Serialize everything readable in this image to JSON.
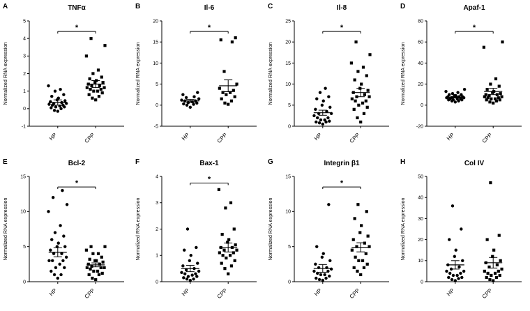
{
  "figure": {
    "background": "#ffffff",
    "marker_color": "#000000",
    "axis_color": "#000000",
    "group_labels": [
      "HP",
      "CPP"
    ],
    "significance_symbol": "*",
    "ylabel": "Normalized RNA expression"
  },
  "chart_data": [
    {
      "type": "scatter",
      "panel": "A",
      "title": "TNFα",
      "ylabel": "Normalized RNA expression",
      "ylim": [
        -1,
        5
      ],
      "yticks": [
        -1,
        0,
        1,
        2,
        3,
        4,
        5
      ],
      "significance": "*",
      "sig_y": 4.4,
      "groups": [
        {
          "label": "HP",
          "marker": "circle",
          "mean": 0.35,
          "sem": 0.15,
          "values": [
            -0.15,
            -0.1,
            0,
            0.05,
            0.1,
            0.1,
            0.15,
            0.2,
            0.2,
            0.25,
            0.3,
            0.3,
            0.35,
            0.4,
            0.45,
            0.5,
            0.6,
            0.7,
            0.8,
            1.0,
            1.1,
            1.3
          ]
        },
        {
          "label": "CPP",
          "marker": "square",
          "mean": 1.4,
          "sem": 0.2,
          "values": [
            0.5,
            0.6,
            0.7,
            0.8,
            0.9,
            1.0,
            1.0,
            1.1,
            1.1,
            1.2,
            1.2,
            1.3,
            1.3,
            1.4,
            1.5,
            1.5,
            1.6,
            1.7,
            1.8,
            2.0,
            2.2,
            3.0,
            3.6,
            4.0
          ]
        }
      ]
    },
    {
      "type": "scatter",
      "panel": "B",
      "title": "Il-6",
      "ylabel": "Normalized RNA expression",
      "ylim": [
        -5,
        20
      ],
      "yticks": [
        -5,
        0,
        5,
        10,
        15,
        20
      ],
      "significance": "*",
      "sig_y": 17.5,
      "groups": [
        {
          "label": "HP",
          "marker": "circle",
          "mean": 1.0,
          "sem": 0.35,
          "values": [
            -0.5,
            0,
            0.2,
            0.3,
            0.5,
            0.6,
            0.8,
            1.0,
            1.0,
            1.2,
            1.5,
            1.8,
            2.0,
            2.5,
            3.0
          ]
        },
        {
          "label": "CPP",
          "marker": "square",
          "mean": 4.6,
          "sem": 1.4,
          "values": [
            0.2,
            0.5,
            1.0,
            1.5,
            2.0,
            2.5,
            3.0,
            3.0,
            3.5,
            4.0,
            5.0,
            8.0,
            15.0,
            15.5,
            16.0
          ]
        }
      ]
    },
    {
      "type": "scatter",
      "panel": "C",
      "title": "Il-8",
      "ylabel": "Normalized RNA expression",
      "ylim": [
        0,
        25
      ],
      "yticks": [
        0,
        5,
        10,
        15,
        20,
        25
      ],
      "significance": "*",
      "sig_y": 22.5,
      "groups": [
        {
          "label": "HP",
          "marker": "circle",
          "mean": 3.2,
          "sem": 0.6,
          "values": [
            0.5,
            0.8,
            1,
            1,
            1.2,
            1.5,
            1.5,
            2,
            2,
            2.5,
            3,
            3,
            3.5,
            4,
            4.5,
            5,
            6,
            6.5,
            7,
            8,
            9
          ]
        },
        {
          "label": "CPP",
          "marker": "square",
          "mean": 8.0,
          "sem": 1.0,
          "values": [
            1,
            2,
            3,
            4,
            4.5,
            5,
            5.5,
            6,
            6,
            6.5,
            7,
            7,
            7.5,
            8,
            8.5,
            9,
            10,
            11,
            12,
            13,
            14,
            15,
            17,
            20
          ]
        }
      ]
    },
    {
      "type": "scatter",
      "panel": "D",
      "title": "Apaf-1",
      "ylabel": "Normalized RNA expression",
      "ylim": [
        -20,
        80
      ],
      "yticks": [
        -20,
        0,
        20,
        40,
        60,
        80
      ],
      "significance": "*",
      "sig_y": 70,
      "groups": [
        {
          "label": "HP",
          "marker": "circle",
          "mean": 7.5,
          "sem": 0.7,
          "values": [
            3,
            4,
            4,
            5,
            5,
            5,
            6,
            6,
            6,
            7,
            7,
            7,
            8,
            8,
            8,
            9,
            9,
            10,
            10,
            11,
            12,
            13,
            15
          ]
        },
        {
          "label": "CPP",
          "marker": "square",
          "mean": 13.0,
          "sem": 3.0,
          "values": [
            2,
            3,
            4,
            5,
            5,
            6,
            6,
            7,
            7,
            8,
            8,
            9,
            10,
            10,
            11,
            12,
            13,
            15,
            18,
            20,
            25,
            55,
            60
          ]
        }
      ]
    },
    {
      "type": "scatter",
      "panel": "E",
      "title": "Bcl-2",
      "ylabel": "Normalized RNA expression",
      "ylim": [
        0,
        15
      ],
      "yticks": [
        0,
        5,
        10,
        15
      ],
      "significance": "*",
      "sig_y": 13.5,
      "groups": [
        {
          "label": "HP",
          "marker": "circle",
          "mean": 4.2,
          "sem": 0.65,
          "values": [
            0.5,
            1,
            1,
            1.5,
            2,
            2,
            2.5,
            3,
            3,
            3,
            3.5,
            4,
            4,
            4.5,
            5,
            5,
            5.5,
            6,
            6.5,
            7,
            8,
            10,
            11,
            12,
            13
          ]
        },
        {
          "label": "CPP",
          "marker": "square",
          "mean": 2.4,
          "sem": 0.28,
          "values": [
            0.3,
            0.5,
            1,
            1,
            1.2,
            1.5,
            1.5,
            1.8,
            2,
            2,
            2,
            2.2,
            2.5,
            2.5,
            2.8,
            3,
            3,
            3.2,
            3.5,
            4,
            4,
            4.5,
            5,
            5
          ]
        }
      ]
    },
    {
      "type": "scatter",
      "panel": "F",
      "title": "Bax-1",
      "ylabel": "Normalized RNA expression",
      "ylim": [
        0,
        4
      ],
      "yticks": [
        0,
        1,
        2,
        3,
        4
      ],
      "significance": "*",
      "sig_y": 3.75,
      "groups": [
        {
          "label": "HP",
          "marker": "circle",
          "mean": 0.5,
          "sem": 0.12,
          "values": [
            0.05,
            0.1,
            0.1,
            0.15,
            0.2,
            0.2,
            0.25,
            0.3,
            0.3,
            0.35,
            0.4,
            0.45,
            0.5,
            0.6,
            0.7,
            0.8,
            1.0,
            1.2,
            1.3,
            2.0
          ]
        },
        {
          "label": "CPP",
          "marker": "square",
          "mean": 1.3,
          "sem": 0.17,
          "values": [
            0.3,
            0.5,
            0.6,
            0.7,
            0.8,
            0.9,
            1.0,
            1.0,
            1.1,
            1.1,
            1.2,
            1.2,
            1.3,
            1.3,
            1.4,
            1.5,
            1.6,
            1.8,
            2.0,
            2.8,
            3.0,
            3.5
          ]
        }
      ]
    },
    {
      "type": "scatter",
      "panel": "G",
      "title": "Integrin β1",
      "ylabel": "Normalized RNA expression",
      "ylim": [
        0,
        15
      ],
      "yticks": [
        0,
        5,
        10,
        15
      ],
      "significance": "*",
      "sig_y": 13.5,
      "groups": [
        {
          "label": "HP",
          "marker": "circle",
          "mean": 1.9,
          "sem": 0.55,
          "values": [
            0.2,
            0.3,
            0.5,
            0.5,
            0.8,
            1,
            1,
            1.2,
            1.5,
            1.5,
            1.8,
            2,
            2,
            2.5,
            3,
            3.5,
            4,
            5,
            11
          ]
        },
        {
          "label": "CPP",
          "marker": "square",
          "mean": 4.9,
          "sem": 0.65,
          "values": [
            1,
            1.5,
            2,
            2,
            2.5,
            3,
            3,
            3.5,
            4,
            4.5,
            5,
            5,
            5.5,
            6,
            6.5,
            7,
            8,
            9,
            10,
            11
          ]
        }
      ]
    },
    {
      "type": "scatter",
      "panel": "H",
      "title": "Col IV",
      "ylabel": "Normalized RNA expression",
      "ylim": [
        0,
        50
      ],
      "yticks": [
        0,
        10,
        20,
        30,
        40,
        50
      ],
      "significance": null,
      "sig_y": null,
      "groups": [
        {
          "label": "HP",
          "marker": "circle",
          "mean": 8.0,
          "sem": 2.0,
          "values": [
            0.5,
            1,
            1.5,
            2,
            2,
            3,
            3,
            4,
            4,
            5,
            5,
            6,
            7,
            8,
            10,
            12,
            15,
            20,
            25,
            36
          ]
        },
        {
          "label": "CPP",
          "marker": "square",
          "mean": 9.0,
          "sem": 2.5,
          "values": [
            0.5,
            1,
            2,
            2,
            3,
            3,
            4,
            4,
            5,
            5,
            6,
            7,
            8,
            9,
            10,
            12,
            15,
            20,
            22,
            47
          ]
        }
      ]
    }
  ]
}
